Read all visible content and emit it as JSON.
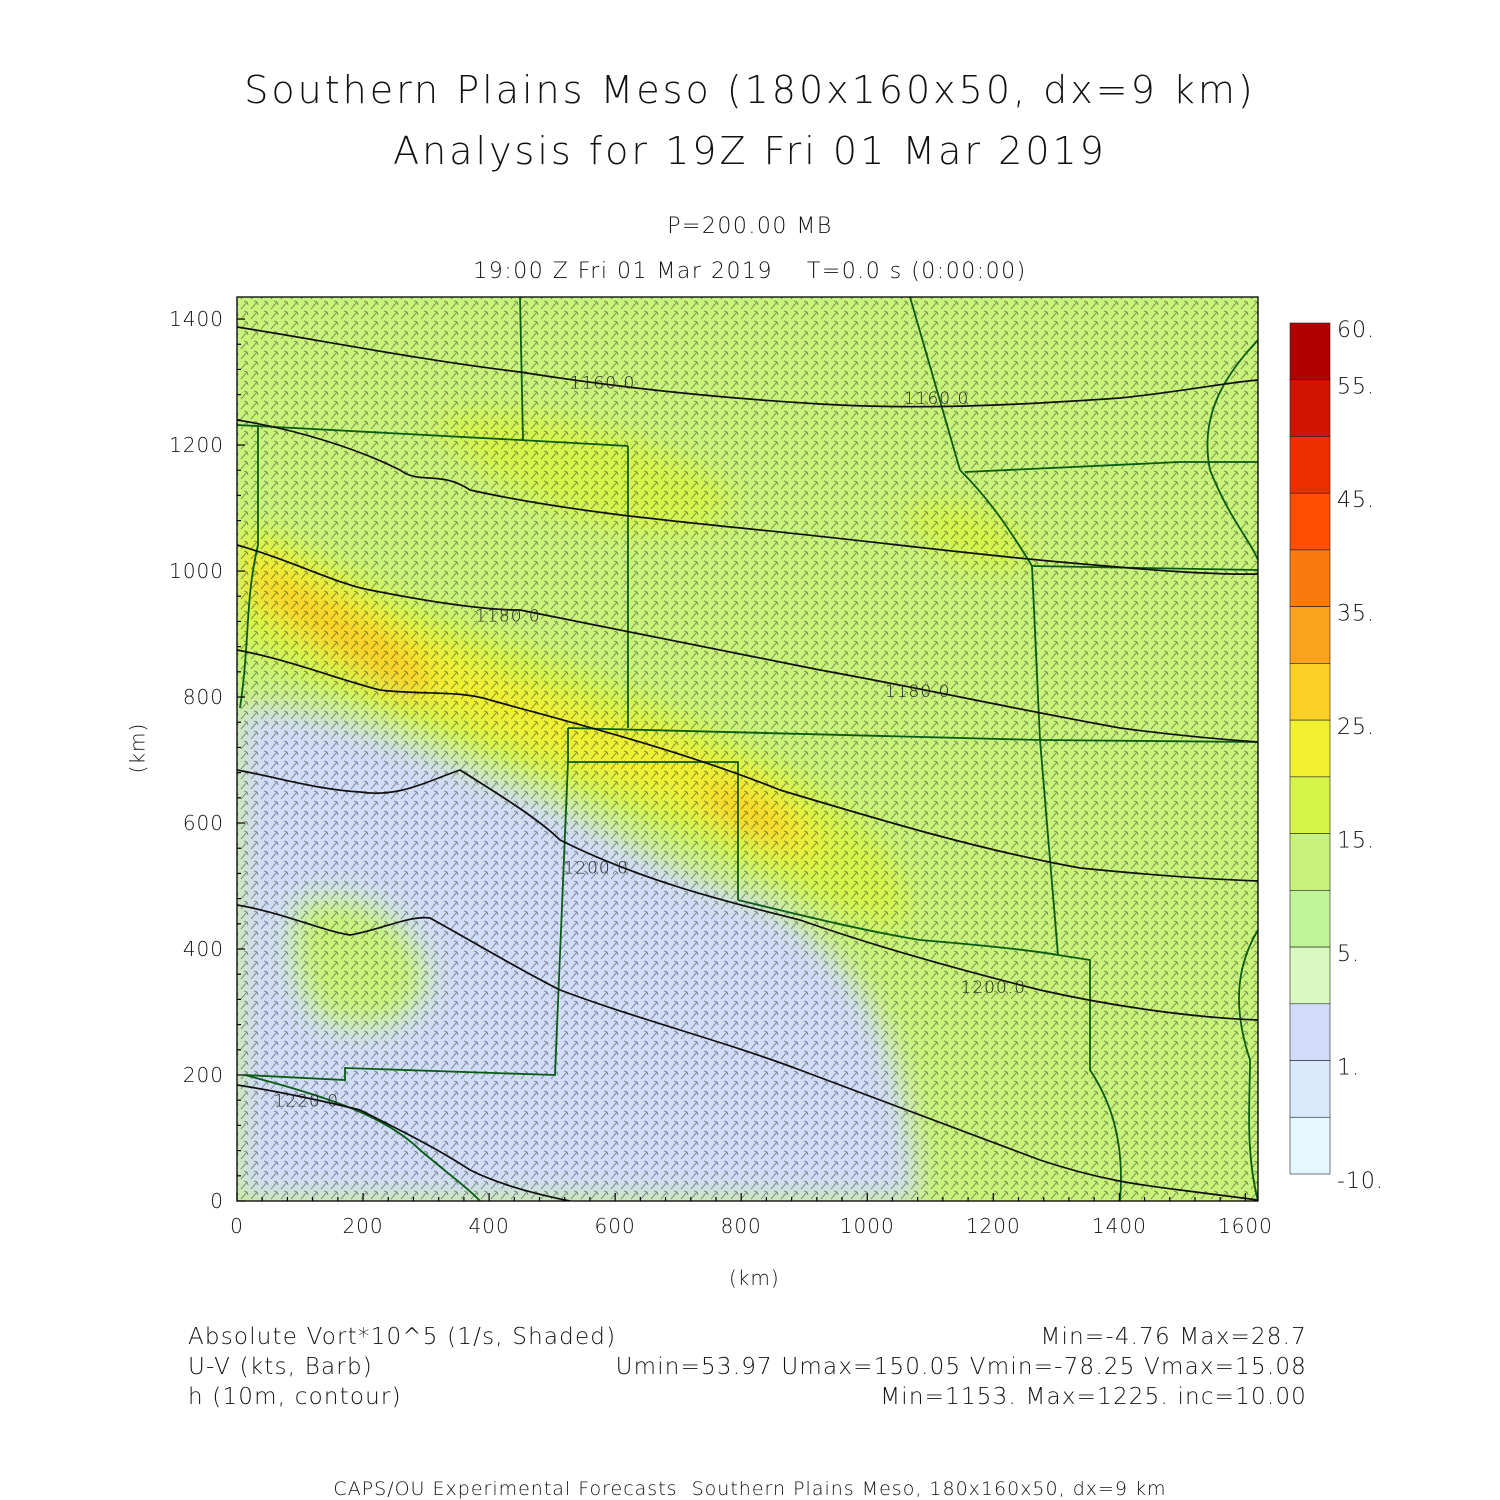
{
  "header": {
    "title_line1": "Southern Plains Meso (180x160x50, dx=9 km)",
    "title_line2": "Analysis for 19Z Fri 01 Mar 2019",
    "level": "P=200.00 MB",
    "time": "19:00 Z Fri 01 Mar 2019    T=0.0 s (0:00:00)"
  },
  "axes": {
    "x_unit": "(km)",
    "y_unit": "(km)",
    "x_ticks": [
      "0",
      "200",
      "400",
      "600",
      "800",
      "1000",
      "1200",
      "1400",
      "1600"
    ],
    "y_ticks": [
      "0",
      "200",
      "400",
      "600",
      "800",
      "1000",
      "1200",
      "1400"
    ],
    "x_range_km": [
      0,
      1620
    ],
    "y_range_km": [
      0,
      1435
    ]
  },
  "colorbar": {
    "labels": [
      "60.",
      "55.",
      "45.",
      "35.",
      "25.",
      "15.",
      "5.",
      "1.",
      "-10."
    ],
    "colors": [
      "#b00000",
      "#d01400",
      "#ee3000",
      "#ff4e00",
      "#fa7a10",
      "#fba21c",
      "#fbd028",
      "#f0f030",
      "#d6f44a",
      "#c8f27a",
      "#c2f49a",
      "#d8f8c0",
      "#d0dcf8",
      "#d8eafc",
      "#e6f8ff"
    ]
  },
  "map": {
    "field_colors": {
      "background": "#c8f27a",
      "low_blue": "#d0dcf8",
      "light_green": "#d6f44a",
      "yellow": "#f0f030",
      "gold": "#fbd028",
      "orange": "#fba21c"
    },
    "border_color": "#0a5c14",
    "contour_labels": [
      {
        "text": "1160.0",
        "x_km": 580,
        "y_km": 1290
      },
      {
        "text": "1160.0",
        "x_km": 1110,
        "y_km": 1265
      },
      {
        "text": "1180.0",
        "x_km": 430,
        "y_km": 920
      },
      {
        "text": "1180.0",
        "x_km": 1080,
        "y_km": 800
      },
      {
        "text": "1200.0",
        "x_km": 570,
        "y_km": 520
      },
      {
        "text": "1200.0",
        "x_km": 1200,
        "y_km": 330
      },
      {
        "text": "1220.0",
        "x_km": 110,
        "y_km": 150
      }
    ]
  },
  "legend": {
    "line1_left": "Absolute Vort*10^5 (1/s, Shaded)",
    "line1_right": "Min=-4.76 Max=28.7",
    "line2_left": "U-V (kts, Barb)",
    "line2_right": "Umin=53.97 Umax=150.05 Vmin=-78.25 Vmax=15.08",
    "line3_left": "h (10m, contour)",
    "line3_right": "Min=1153. Max=1225. inc=10.00"
  },
  "footer": {
    "text": "CAPS/OU Experimental Forecasts  Southern Plains Meso, 180x160x50, dx=9 km"
  }
}
